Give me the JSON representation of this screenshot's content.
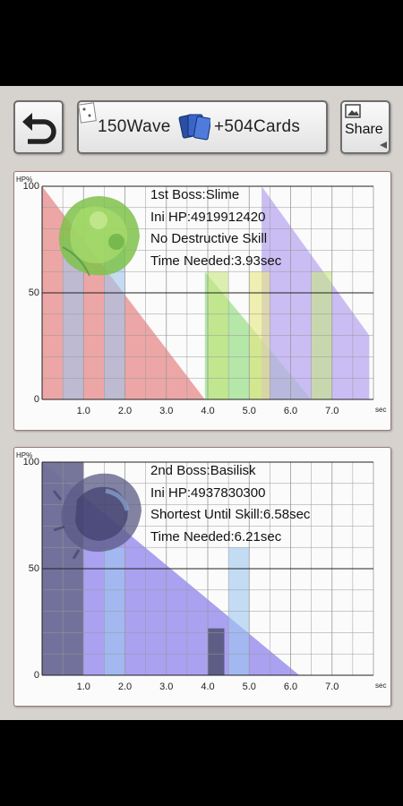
{
  "toolbar": {
    "wave_count": "150Wave",
    "cards_count": "+504Cards",
    "share_label": "Share"
  },
  "bosses": [
    {
      "title": "1st Boss:Slime",
      "ini_hp": "Ini HP:4919912420",
      "skill": "No Destructive Skill",
      "time": "Time Needed:3.93sec",
      "icon": "slime-icon"
    },
    {
      "title": "2nd Boss:Basilisk",
      "ini_hp": "Ini HP:4937830300",
      "skill": "Shortest Until Skill:6.58sec",
      "time": "Time Needed:6.21sec",
      "icon": "basilisk-icon"
    }
  ],
  "axis": {
    "y_unit": "HP%",
    "x_unit": "sec",
    "y_ticks": [
      "100",
      "50",
      "0"
    ],
    "x_ticks": [
      "1.0",
      "2.0",
      "3.0",
      "4.0",
      "5.0",
      "6.0",
      "7.0"
    ]
  },
  "chart_data": [
    {
      "type": "area",
      "title": "1st Boss:Slime",
      "ylabel": "HP%",
      "xlabel": "sec",
      "xlim": [
        0,
        8
      ],
      "ylim": [
        0,
        100
      ],
      "series": [
        {
          "name": "",
          "color": "#e88a8a",
          "x": [
            0,
            3.93
          ],
          "y": [
            100,
            0
          ]
        },
        {
          "name": "",
          "color": "#9ee08c",
          "x": [
            3.93,
            6.5
          ],
          "y": [
            60,
            0
          ]
        },
        {
          "name": "",
          "color": "#b9a8f0",
          "x": [
            5.3,
            7.9
          ],
          "y": [
            100,
            30
          ]
        }
      ]
    },
    {
      "type": "area",
      "title": "2nd Boss:Basilisk",
      "ylabel": "HP%",
      "xlabel": "sec",
      "xlim": [
        0,
        8
      ],
      "ylim": [
        0,
        100
      ],
      "series": [
        {
          "name": "",
          "color": "#8f83ee",
          "x": [
            0,
            6.21
          ],
          "y": [
            100,
            0
          ]
        },
        {
          "name": "",
          "color": "#6f6f96",
          "x": [
            0,
            1.0
          ],
          "y": [
            100,
            100
          ]
        }
      ]
    }
  ],
  "colors": {
    "background": "#d6d2ce",
    "panel": "#fbfbfb",
    "grid": "#999999"
  }
}
